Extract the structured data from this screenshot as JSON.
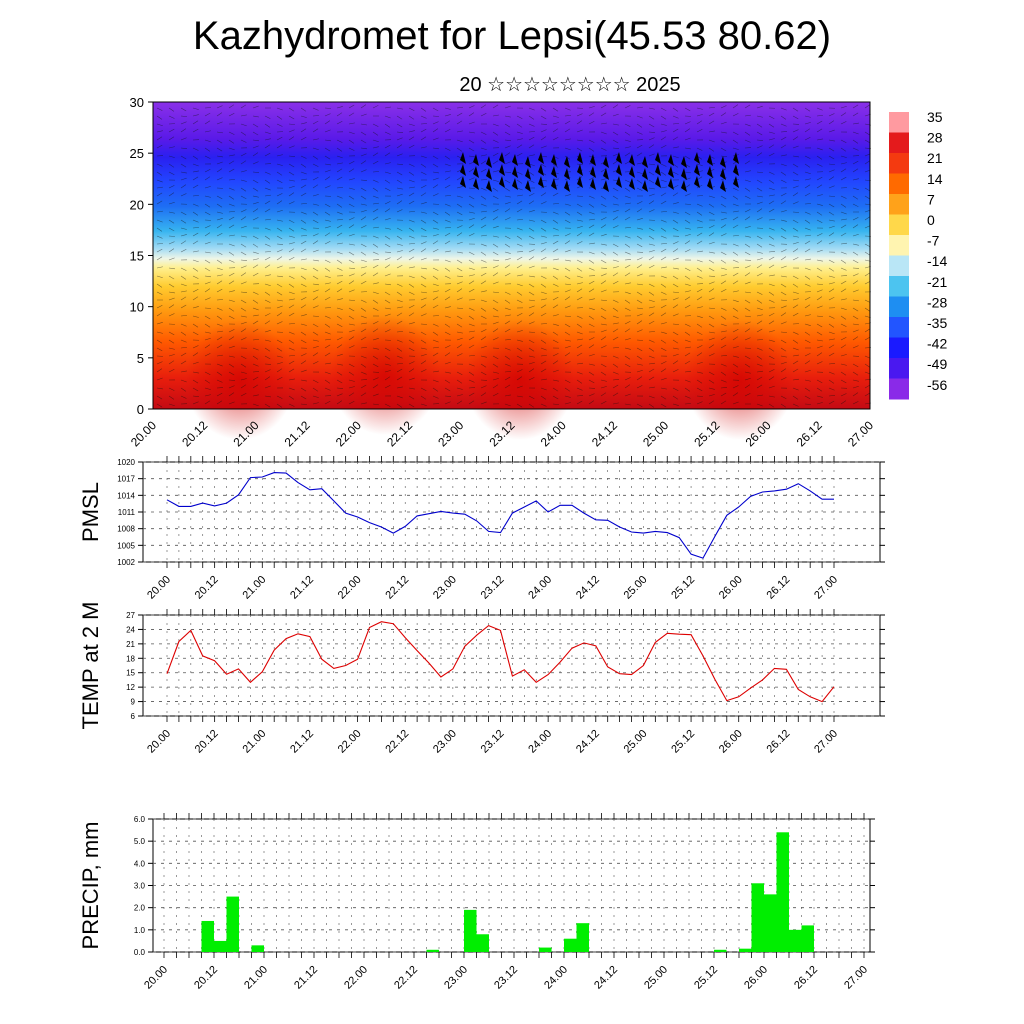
{
  "title": "Kazhydromet for Lepsi(45.53 80.62)",
  "subtitle": "20 ☆☆☆☆☆☆☆☆ 2025",
  "time_labels": [
    "20.00",
    "20.12",
    "21.00",
    "21.12",
    "22.00",
    "22.12",
    "23.00",
    "23.12",
    "24.00",
    "24.12",
    "25.00",
    "25.12",
    "26.00",
    "26.12",
    "27.00"
  ],
  "chart_data": [
    {
      "type": "heatmap",
      "ylim": [
        0,
        30
      ],
      "yticks": [
        "0",
        "5",
        "10",
        "15",
        "20",
        "25",
        "30"
      ],
      "colorbar": {
        "labels": [
          "35",
          "28",
          "21",
          "14",
          "7",
          "0",
          "-7",
          "-14",
          "-21",
          "-28",
          "-35",
          "-42",
          "-49",
          "-56"
        ],
        "colors": [
          "#ff9aa0",
          "#e41a1c",
          "#f43a10",
          "#ff6a00",
          "#ffa21a",
          "#ffd84a",
          "#fff4b0",
          "#b9e6f6",
          "#4cc4f0",
          "#1e8ef2",
          "#2255ff",
          "#1a1aff",
          "#4a18f0",
          "#8a2ae8"
        ]
      }
    },
    {
      "type": "line",
      "ylabel": "PMSL",
      "yticks": [
        "1002",
        "1005",
        "1008",
        "1011",
        "1014",
        "1017",
        "1020"
      ],
      "ylim": [
        1002,
        1020
      ],
      "color": "#0000cc",
      "values": [
        1013.2,
        1012,
        1012,
        1012.6,
        1012.1,
        1012.6,
        1014.1,
        1017.2,
        1017.3,
        1018.1,
        1018,
        1016.3,
        1015,
        1015.2,
        1013,
        1010.8,
        1010.1,
        1009.1,
        1008.3,
        1007.2,
        1008.4,
        1010.3,
        1010.7,
        1011.1,
        1010.8,
        1010.6,
        1009.4,
        1007.5,
        1007.3,
        1010.8,
        1011.9,
        1013,
        1011,
        1012.2,
        1012.2,
        1010.8,
        1009.6,
        1009.5,
        1008.3,
        1007.4,
        1007.2,
        1007.5,
        1007.3,
        1006.4,
        1003.4,
        1002.7,
        1006.6,
        1010.4,
        1011.9,
        1013.8,
        1014.6,
        1014.8,
        1015.1,
        1016.1,
        1014.8,
        1013.3,
        1013.3
      ]
    },
    {
      "type": "line",
      "ylabel": "TEMP at 2 M",
      "yticks": [
        "6",
        "9",
        "12",
        "15",
        "18",
        "21",
        "24",
        "27"
      ],
      "ylim": [
        6,
        27
      ],
      "color": "#dd0000",
      "values": [
        14.8,
        21.5,
        23.8,
        18.5,
        17.5,
        14.7,
        15.8,
        13,
        15.2,
        19.7,
        22.1,
        23.1,
        22.5,
        17.8,
        15.9,
        16.5,
        17.8,
        24.4,
        25.6,
        25.2,
        22.3,
        19.6,
        17,
        14.1,
        15.8,
        20.5,
        22.8,
        24.8,
        23.8,
        14.3,
        15.6,
        13,
        14.6,
        17.2,
        20.1,
        21.2,
        20.6,
        16.2,
        14.8,
        14.6,
        16.5,
        21.3,
        23.2,
        23,
        22.9,
        18.5,
        13.6,
        9.2,
        10,
        11.8,
        13.5,
        15.9,
        15.7,
        11.5,
        10,
        9,
        12.1
      ]
    },
    {
      "type": "bar",
      "ylabel": "PRECIP, mm",
      "yticks": [
        "0.0",
        "1.0",
        "2.0",
        "3.0",
        "4.0",
        "5.0",
        "6.0"
      ],
      "ylim": [
        0,
        6
      ],
      "color": "#00ee00",
      "values": [
        0,
        0,
        0,
        1.4,
        0.5,
        2.5,
        0,
        0.3,
        0,
        0,
        0,
        0,
        0,
        0,
        0,
        0,
        0,
        0,
        0,
        0,
        0,
        0.1,
        0,
        0,
        1.9,
        0.8,
        0,
        0,
        0,
        0,
        0.2,
        0,
        0.6,
        1.3,
        0,
        0,
        0,
        0,
        0,
        0,
        0,
        0,
        0,
        0,
        0.1,
        0,
        0.15,
        3.1,
        2.6,
        5.4,
        1.0,
        1.2,
        0,
        0,
        0,
        0,
        0
      ]
    }
  ]
}
